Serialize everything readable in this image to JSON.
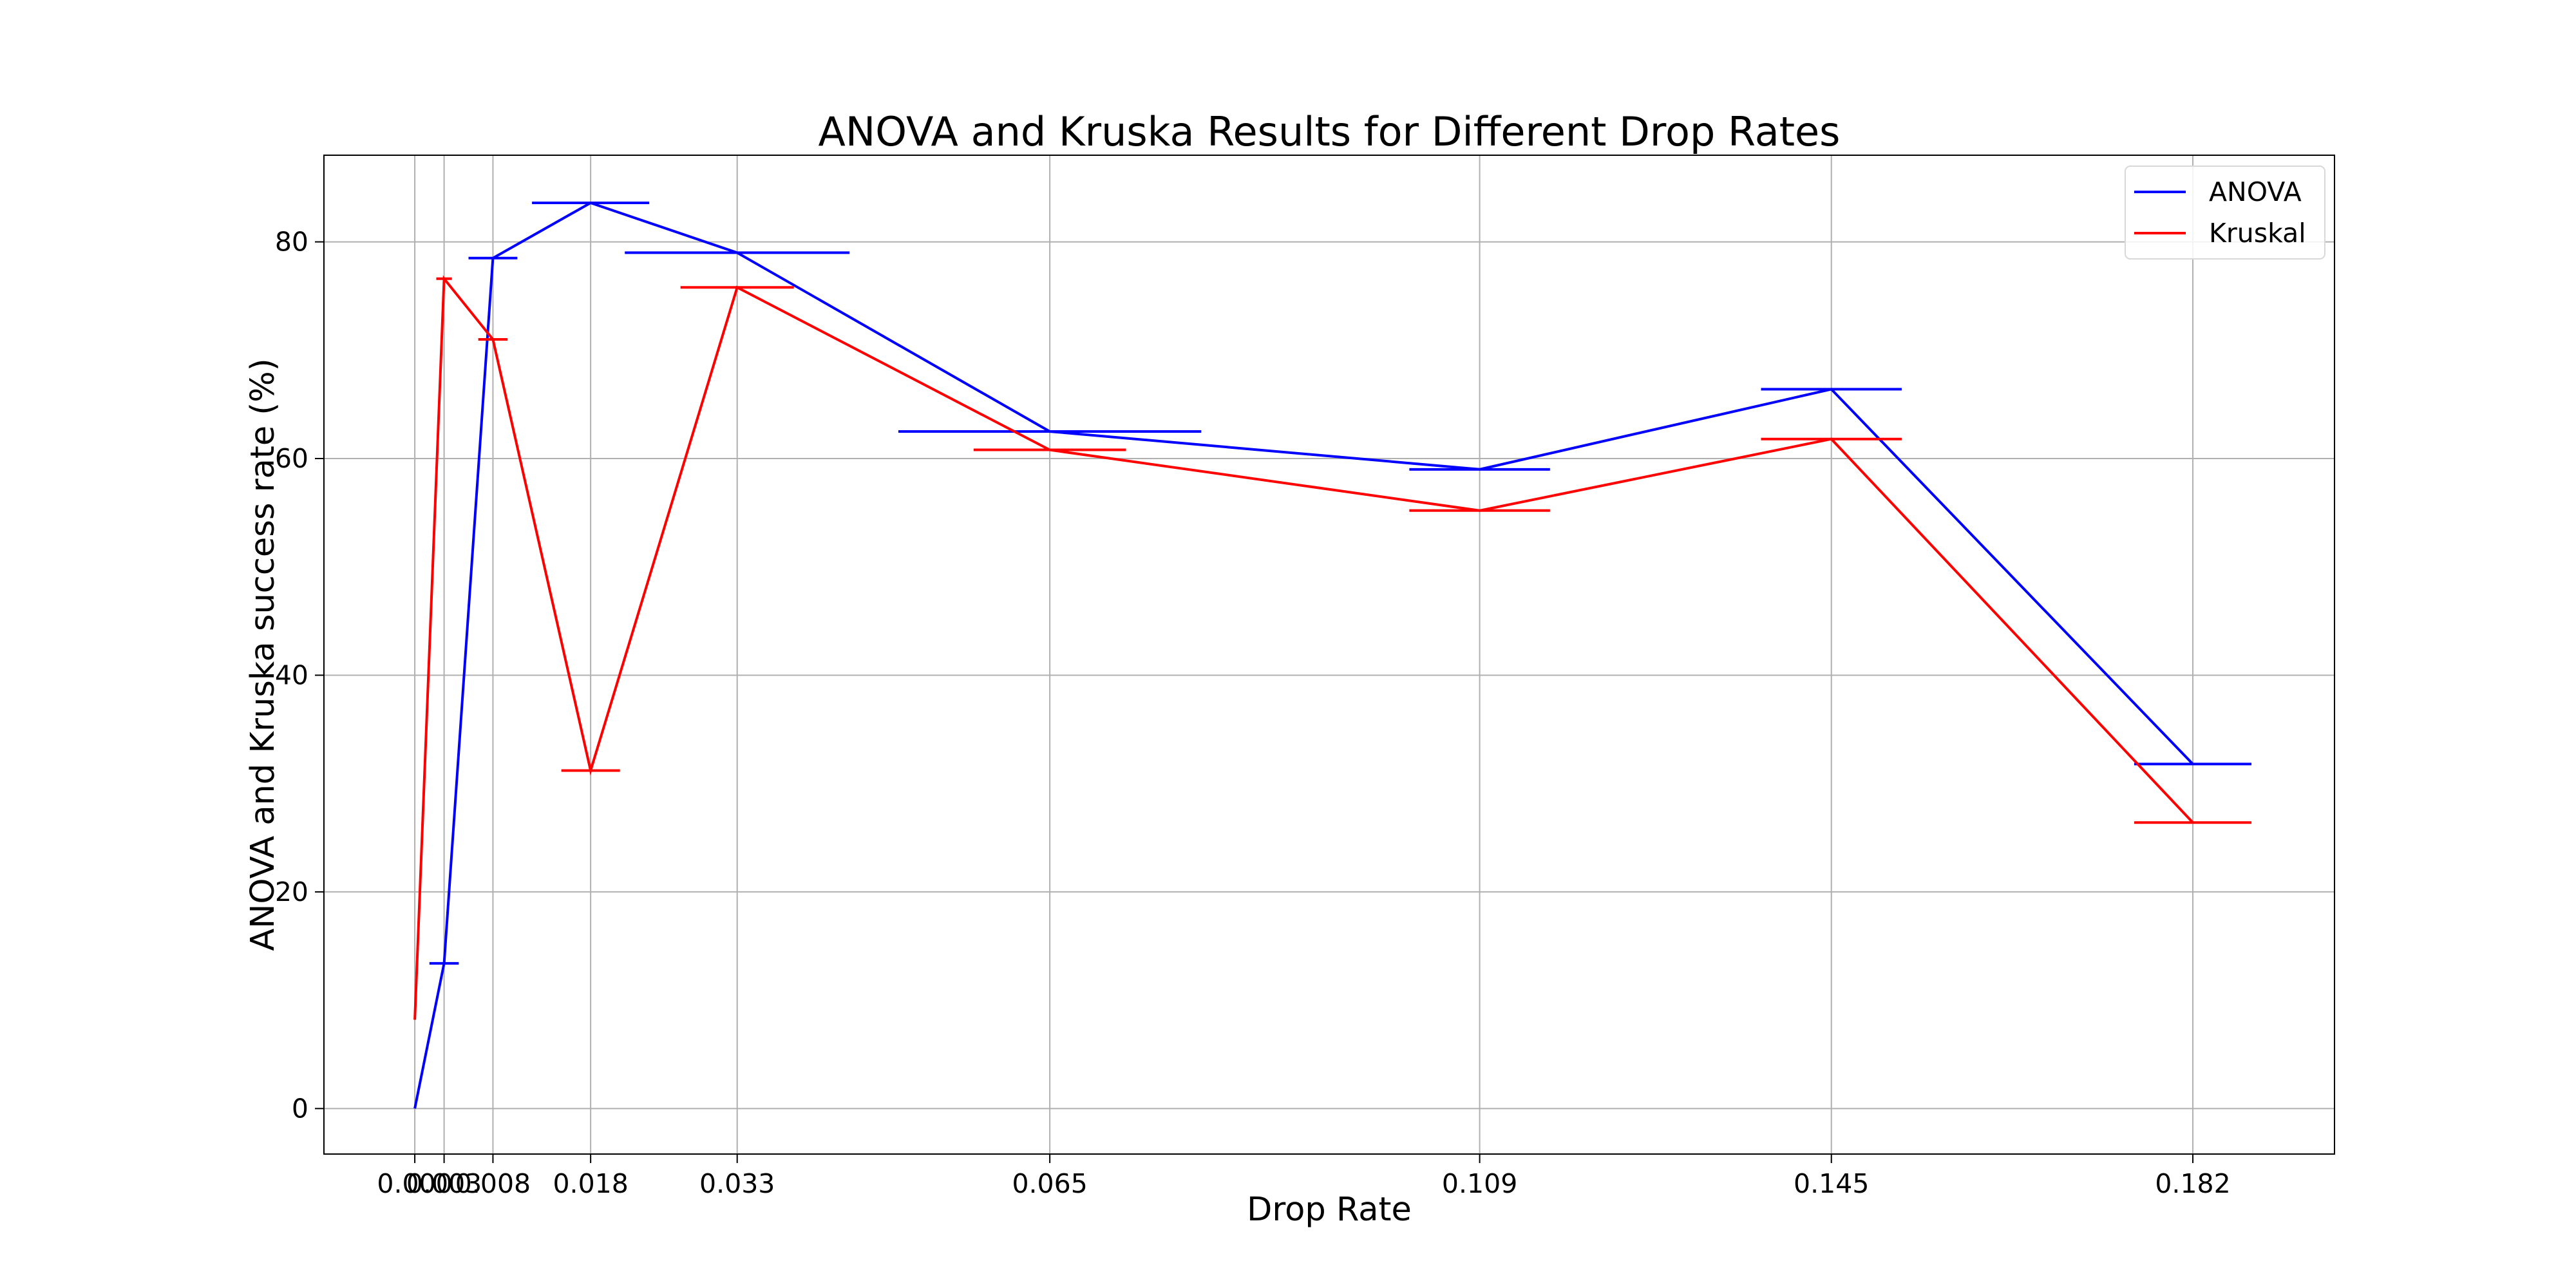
{
  "chart_data": {
    "type": "line",
    "title": "ANOVA and Kruska Results for Different Drop Rates",
    "xlabel": "Drop Rate",
    "ylabel": "ANOVA and Kruska success rate (%)",
    "x": [
      0.0,
      0.003,
      0.008,
      0.018,
      0.033,
      0.065,
      0.109,
      0.145,
      0.182
    ],
    "x_tick_labels": [
      "0.000",
      "0.003",
      "0.008",
      "0.018",
      "0.033",
      "0.065",
      "0.109",
      "0.145",
      "0.182"
    ],
    "xlim": [
      -0.0093,
      0.1965
    ],
    "ylim": [
      -4.2,
      88.0
    ],
    "y_ticks": [
      0,
      20,
      40,
      60,
      80
    ],
    "grid": true,
    "legend_position": "top-right",
    "series": [
      {
        "name": "ANOVA",
        "color": "#0000ff",
        "values": [
          0.0,
          13.4,
          78.5,
          83.6,
          79.0,
          62.5,
          59.0,
          66.4,
          31.8
        ],
        "cap_width": [
          0.0,
          0.0015,
          0.0025,
          0.006,
          0.0115,
          0.0155,
          0.0072,
          0.0072,
          0.006
        ]
      },
      {
        "name": "Kruskal",
        "color": "#ff0000",
        "values": [
          8.2,
          76.6,
          71.0,
          31.2,
          75.8,
          60.8,
          55.2,
          61.8,
          26.4
        ],
        "cap_width": [
          0.0,
          0.0008,
          0.0015,
          0.003,
          0.0058,
          0.0078,
          0.0072,
          0.0072,
          0.006
        ]
      }
    ]
  }
}
